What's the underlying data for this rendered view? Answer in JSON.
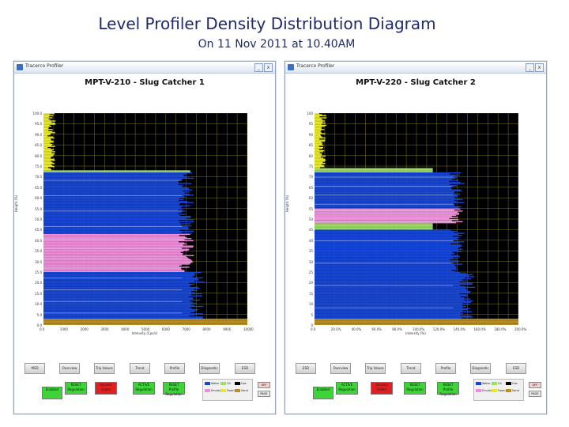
{
  "slide": {
    "title": "Level Profiler Density Distribution Diagram",
    "subtitle": "On 11 Nov 2011 at 10.40AM"
  },
  "colors": {
    "water": "#1646d8",
    "emulsion": "#ee8ed9",
    "oil": "#9fde65",
    "foam": "#e8e82c",
    "sand": "#b98e22",
    "gas": "#000000",
    "grid": "#7a7a20"
  },
  "windows": [
    {
      "app_title": "Tracerco Profiler",
      "chart_title": "MPT-V-210 - Slug Catcher 1",
      "buttons": [
        "MSD",
        "Overview",
        "Trip Values",
        "Trend",
        "Profile",
        "Diagnostic",
        "ESD"
      ],
      "status": [
        "Enabled",
        "RESET Regulation",
        "Sensors Failed",
        "ACTIVE Regulation",
        "RESET Profile Regulation"
      ],
      "legend": [
        "Water",
        "Emulsion",
        "Oil",
        "Foam",
        "Gas",
        "Sand"
      ],
      "mini_buttons": [
        "OFF",
        "PAGE"
      ],
      "xlabel": "Intensity (Cps/s)",
      "ylabel": "Height (%)"
    },
    {
      "app_title": "Tracerco Profiler",
      "chart_title": "MPT-V-220 - Slug Catcher 2",
      "buttons": [
        "ESD",
        "Overview",
        "Trip Values",
        "Trend",
        "Profile",
        "Diagnostic",
        "ESD"
      ],
      "status": [
        "Enabled",
        "ACTIVE Regulation",
        "Sensors Failed",
        "RESET Regulation",
        "RESET Profile Regulation"
      ],
      "legend": [
        "Water",
        "Emulsion",
        "Oil",
        "Foam",
        "Gas",
        "Sand"
      ],
      "mini_buttons": [
        "OFF",
        "PAGE"
      ],
      "xlabel": "Intensity (%)",
      "ylabel": "Height (%)"
    }
  ],
  "chart_data": [
    {
      "type": "bar",
      "orientation": "horizontal",
      "title": "MPT-V-210 - Slug Catcher 1",
      "xlabel": "Intensity (Cps/s)",
      "ylabel": "Height (%)",
      "y_ticks": [
        "100.0",
        "95.0",
        "90.0",
        "85.0",
        "80.0",
        "75.0",
        "70.0",
        "65.0",
        "60.0",
        "55.0",
        "50.0",
        "45.0",
        "40.0",
        "35.0",
        "30.0",
        "25.0",
        "20.0",
        "15.0",
        "10.0",
        "5.0",
        "0.0"
      ],
      "x_ticks": [
        "0.0",
        "500",
        "1000",
        "1500",
        "2000",
        "2500",
        "3000",
        "3500",
        "4000",
        "4500",
        "5000",
        "5500",
        "6000",
        "6500",
        "7000",
        "7500",
        "8000",
        "8500",
        "9000",
        "9500",
        "10000"
      ],
      "ylim": [
        0,
        100
      ],
      "xlim": [
        0,
        10000
      ],
      "layers": [
        {
          "name": "Sand",
          "from": 0,
          "to": 3
        },
        {
          "name": "Water",
          "from": 3,
          "to": 25
        },
        {
          "name": "Emulsion",
          "from": 25,
          "to": 43
        },
        {
          "name": "Water",
          "from": 43,
          "to": 72
        },
        {
          "name": "Oil",
          "from": 72,
          "to": 73
        },
        {
          "name": "Foam",
          "from": 73,
          "to": 100
        }
      ]
    },
    {
      "type": "bar",
      "orientation": "horizontal",
      "title": "MPT-V-220 - Slug Catcher 2",
      "xlabel": "Intensity (%)",
      "ylabel": "Height (%)",
      "y_ticks": [
        "100",
        "95",
        "90",
        "85",
        "80",
        "75",
        "70",
        "65",
        "60",
        "55",
        "50",
        "45",
        "40",
        "35",
        "30",
        "25",
        "20",
        "15",
        "10",
        "5",
        "0"
      ],
      "x_ticks": [
        "0.0",
        "10.0%",
        "20.0%",
        "30.0%",
        "40.0%",
        "50.0%",
        "60.0%",
        "70.0%",
        "80.0%",
        "90.0%",
        "100.0%",
        "110.0%",
        "120.0%",
        "130.0%",
        "140.0%",
        "150.0%",
        "160.0%",
        "170.0%",
        "180.0%",
        "190.0%",
        "200.0%"
      ],
      "ylim": [
        0,
        100
      ],
      "xlim": [
        0,
        200
      ],
      "layers": [
        {
          "name": "Sand",
          "from": 0,
          "to": 3
        },
        {
          "name": "Water",
          "from": 3,
          "to": 45
        },
        {
          "name": "Oil",
          "from": 45,
          "to": 48
        },
        {
          "name": "Emulsion",
          "from": 48,
          "to": 55
        },
        {
          "name": "Water",
          "from": 55,
          "to": 72
        },
        {
          "name": "Oil",
          "from": 72,
          "to": 74
        },
        {
          "name": "Foam",
          "from": 74,
          "to": 100
        }
      ]
    }
  ]
}
